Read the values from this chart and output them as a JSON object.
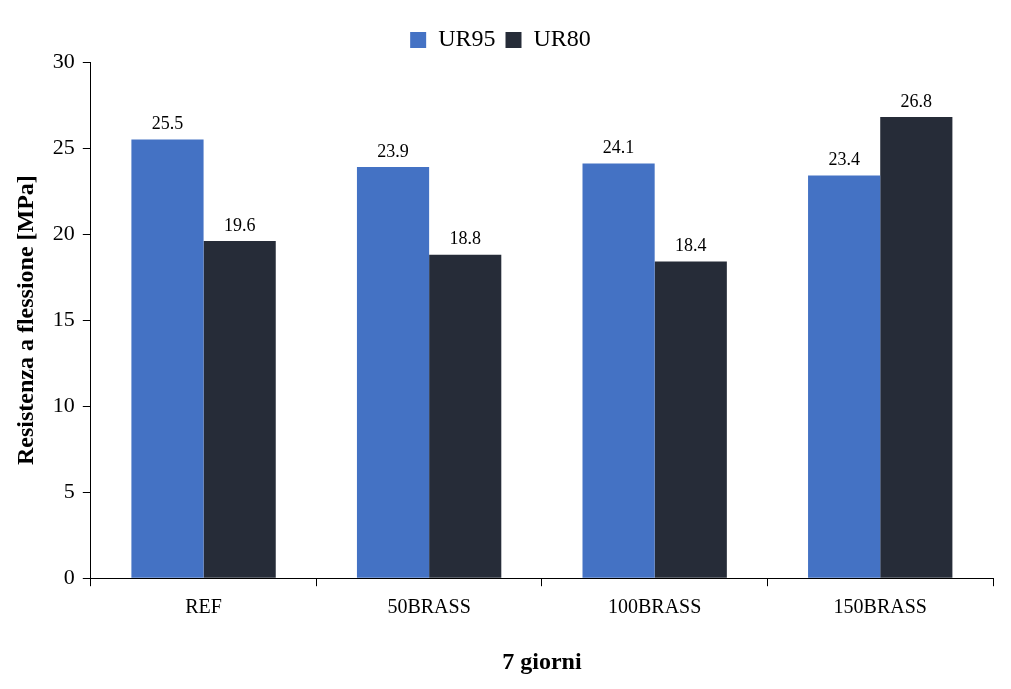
{
  "chart_data": {
    "type": "bar",
    "xlabel": "7 giorni",
    "ylabel": "Resistenza a flessione [MPa]",
    "categories": [
      "REF",
      "50BRASS",
      "100BRASS",
      "150BRASS"
    ],
    "series": [
      {
        "name": "UR95",
        "color": "#4472c4",
        "values": [
          25.5,
          23.9,
          24.1,
          23.4
        ]
      },
      {
        "name": "UR80",
        "color": "#262c38",
        "values": [
          19.6,
          18.8,
          18.4,
          26.8
        ]
      }
    ],
    "ylim": [
      0,
      30
    ],
    "yticks": [
      0,
      5,
      10,
      15,
      20,
      25,
      30
    ],
    "grid": false,
    "legend": "top",
    "data_labels": true
  }
}
